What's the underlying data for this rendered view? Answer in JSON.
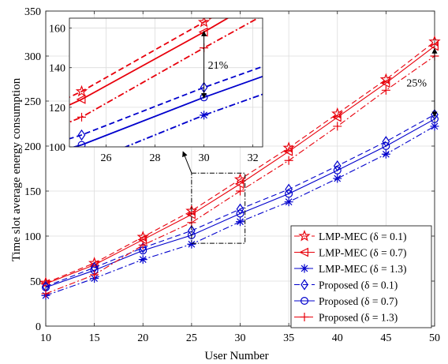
{
  "chart_data": {
    "type": "line",
    "xlabel": "User Number",
    "ylabel": "Time slot average energy consumption",
    "xlim": [
      10,
      50
    ],
    "ylim": [
      0,
      350
    ],
    "xticks": [
      10,
      15,
      20,
      25,
      30,
      35,
      40,
      45,
      50
    ],
    "yticks": [
      0,
      50,
      100,
      150,
      200,
      250,
      300,
      350
    ],
    "grid": true,
    "legend_position": "bottom-right",
    "x": [
      10,
      15,
      20,
      25,
      30,
      35,
      40,
      45,
      50
    ],
    "series": [
      {
        "name": "LMP-MEC (δ = 0.1)",
        "color": "#e8000b",
        "dash": "dashed",
        "marker": "star",
        "values": [
          48,
          70,
          99,
          128,
          163,
          198,
          236,
          274,
          316
        ]
      },
      {
        "name": "LMP-MEC (δ = 0.7)",
        "color": "#e8000b",
        "dash": "solid",
        "marker": "triangle-left",
        "values": [
          47,
          68,
          96,
          124,
          158,
          194,
          232,
          270,
          311
        ]
      },
      {
        "name": "LMP-MEC (δ = 1.3)",
        "color": "#0000cc",
        "dash": "dashdot",
        "marker": "asterisk",
        "values": [
          34,
          53,
          74,
          91,
          116,
          138,
          164,
          191,
          222
        ]
      },
      {
        "name": "Proposed (δ = 0.1)",
        "color": "#0000cc",
        "dash": "dashed",
        "marker": "diamond",
        "values": [
          44,
          65,
          87,
          106,
          130,
          152,
          178,
          205,
          235
        ]
      },
      {
        "name": "Proposed (δ = 0.7)",
        "color": "#0000cc",
        "dash": "solid",
        "marker": "circle",
        "values": [
          43,
          62,
          84,
          101,
          125,
          147,
          173,
          200,
          230
        ]
      },
      {
        "name": "Proposed (δ = 1.3)",
        "color": "#e8000b",
        "dash": "dashdot",
        "marker": "plus",
        "values": [
          36,
          57,
          90,
          115,
          150,
          184,
          222,
          262,
          300
        ]
      }
    ],
    "annotations": [
      {
        "text": "25%",
        "x": 50,
        "y_from": 230,
        "y_to": 311
      }
    ],
    "inset": {
      "xlim": [
        24.5,
        32.4
      ],
      "ylim": [
        100,
        165
      ],
      "xticks": [
        26,
        28,
        30,
        32
      ],
      "yticks": [
        100,
        120,
        140,
        160
      ],
      "zoom_region": {
        "x": [
          25,
          30.5
        ],
        "y": [
          92,
          170
        ]
      },
      "annotation": {
        "text": "21%",
        "x": 30,
        "y_from": 125,
        "y_to": 158
      }
    }
  }
}
